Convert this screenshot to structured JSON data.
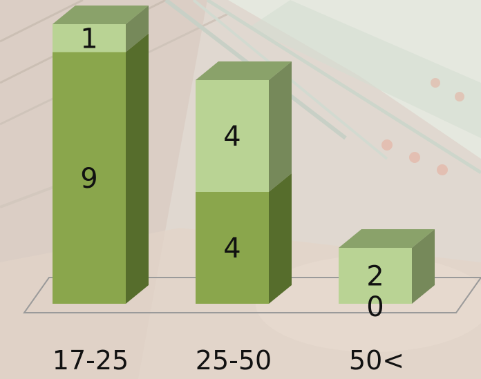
{
  "chart_data": {
    "type": "bar",
    "stacked": true,
    "three_d": true,
    "categories": [
      "17-25",
      "25-50",
      "50<"
    ],
    "series": [
      {
        "values": [
          9,
          4,
          0
        ]
      },
      {
        "values": [
          1,
          4,
          2
        ]
      }
    ],
    "ylim": [
      0,
      10
    ],
    "grid": false,
    "legend": "none"
  },
  "colors": {
    "series_front": [
      "#8aa64c",
      "#b9d394"
    ],
    "series_side": [
      "#566d2c",
      "#76895a"
    ],
    "series_top": [
      "#76895a",
      "#8aa26a"
    ],
    "floor_line": "#9a9a9a",
    "background": "#dcd4cc"
  }
}
